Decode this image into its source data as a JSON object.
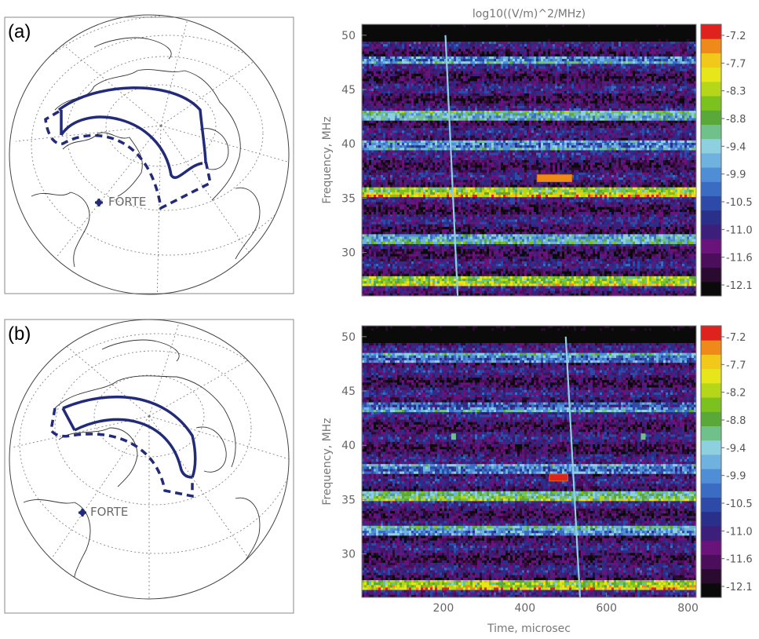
{
  "colorbar_title": "log10((V/m)^2/MHz)",
  "colormap": [
    "#0a0a0a",
    "#2a0a2e",
    "#4a0e5a",
    "#6a137a",
    "#3b1f7a",
    "#2a2f8a",
    "#2d4aa8",
    "#3b6cc4",
    "#4f8ed6",
    "#6fb1df",
    "#8fd0e0",
    "#6fc08a",
    "#5aa83a",
    "#7cc21e",
    "#b6d61a",
    "#e6e61a",
    "#f2c81a",
    "#ef8a1a",
    "#e0221e"
  ],
  "forte_label": "FORTE",
  "chart_data": [
    {
      "panel_label": "(a)",
      "type": "heatmap",
      "title": "log10((V/m)^2/MHz)",
      "xlabel": "",
      "ylabel": "Frequency, MHz",
      "xlim": [
        0,
        820
      ],
      "ylim": [
        26,
        51
      ],
      "xticks": [
        200,
        400,
        600,
        800
      ],
      "yticks": [
        30,
        35,
        40,
        45,
        50
      ],
      "colorbar": {
        "ticks": [
          "-7.2",
          "-7.7",
          "-8.3",
          "-8.8",
          "-9.4",
          "-9.9",
          "-10.5",
          "-11.0",
          "-11.6",
          "-12.1"
        ],
        "range": [
          -12.1,
          -7.2
        ]
      },
      "dispersed_track": {
        "start": [
          205,
          50
        ],
        "end": [
          235,
          26
        ]
      },
      "bright_bands": [
        {
          "freq": 35.6,
          "level": -8.6
        },
        {
          "freq": 27.3,
          "level": -8.8
        },
        {
          "freq": 42.6,
          "level": -9.7
        },
        {
          "freq": 39.8,
          "level": -9.9
        },
        {
          "freq": 31.2,
          "level": -9.9
        },
        {
          "freq": 47.7,
          "level": -10.0
        }
      ],
      "marker": {
        "time": [
          430,
          515
        ],
        "freq": 36.8,
        "level": -7.6
      }
    },
    {
      "panel_label": "(b)",
      "type": "heatmap",
      "title": "",
      "xlabel": "Time, microsec",
      "ylabel": "Frequency, MHz",
      "xlim": [
        0,
        820
      ],
      "ylim": [
        26,
        51
      ],
      "xticks": [
        200,
        400,
        600,
        800
      ],
      "yticks": [
        30,
        35,
        40,
        45,
        50
      ],
      "colorbar": {
        "ticks": [
          "-7.2",
          "-7.7",
          "-8.2",
          "-8.8",
          "-9.4",
          "-9.9",
          "-10.5",
          "-11.0",
          "-11.6",
          "-12.1"
        ],
        "range": [
          -12.1,
          -7.2
        ]
      },
      "dispersed_track": {
        "start": [
          500,
          50
        ],
        "end": [
          535,
          26
        ]
      },
      "bright_bands": [
        {
          "freq": 48.0,
          "level": -10.0
        },
        {
          "freq": 35.4,
          "level": -9.1
        },
        {
          "freq": 27.2,
          "level": -8.5
        },
        {
          "freq": 37.8,
          "level": -10.0
        },
        {
          "freq": 32.1,
          "level": -10.0
        },
        {
          "freq": 43.6,
          "level": -10.2
        }
      ],
      "marker": {
        "time": [
          460,
          505
        ],
        "freq": 37.0,
        "level": -7.2
      },
      "dots": [
        {
          "time": 225,
          "freq": 40.8
        },
        {
          "time": 690,
          "freq": 40.8
        }
      ]
    }
  ]
}
